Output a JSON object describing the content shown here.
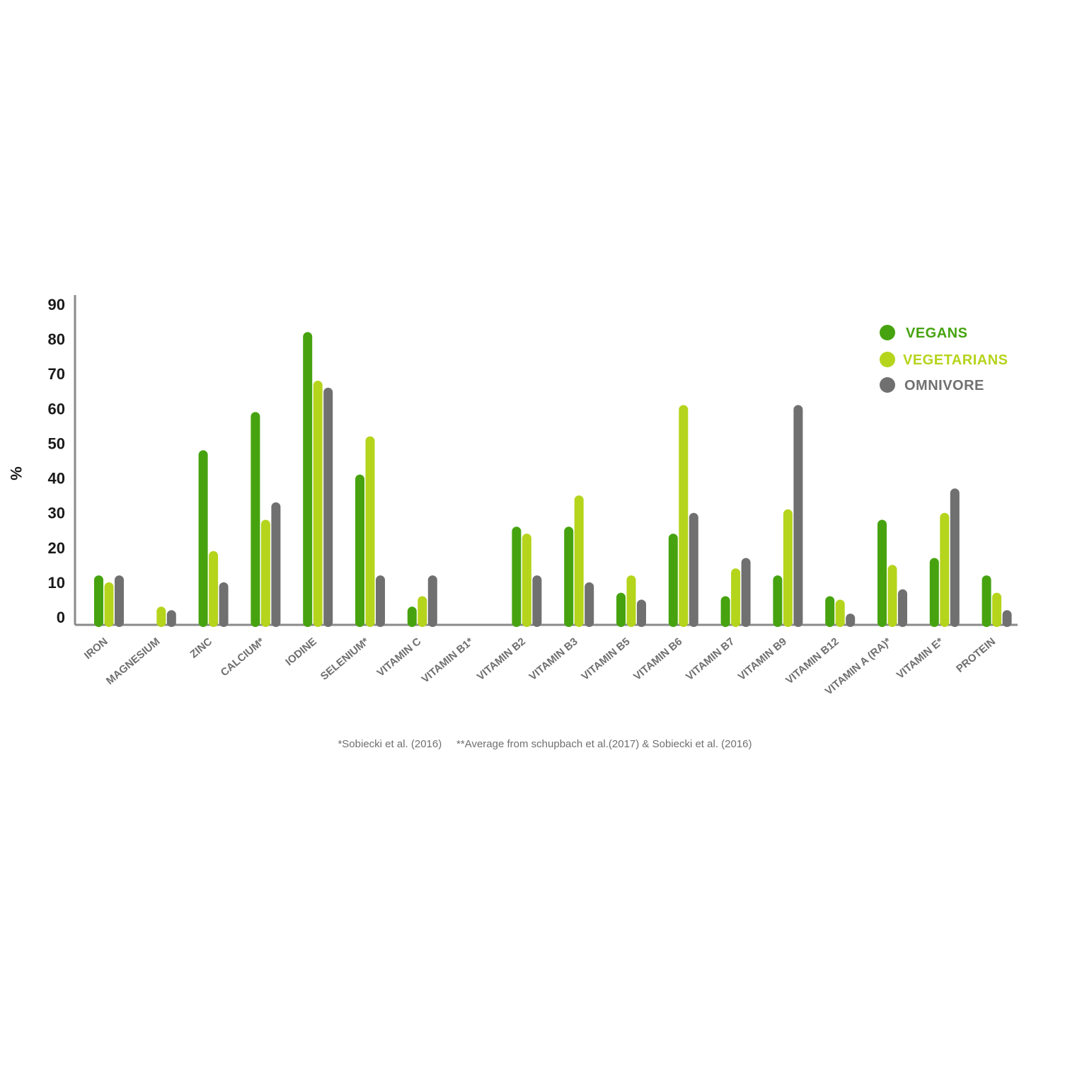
{
  "chart_data": {
    "type": "bar",
    "ylabel": "%",
    "ylim": [
      0,
      90
    ],
    "yticks": [
      0,
      10,
      20,
      30,
      40,
      50,
      60,
      70,
      80,
      90
    ],
    "categories": [
      "IRON",
      "MAGNESIUM",
      "ZINC",
      "CALCIUM*",
      "IODINE",
      "SELENIUM*",
      "VITAMIN C",
      "VITAMIN B1*",
      "VITAMIN B2",
      "VITAMIN B3",
      "VITAMIN B5",
      "VITAMIN B6",
      "VITAMIN B7",
      "VITAMIN B9",
      "VITAMIN B12",
      "VITAMIN A (RA)*",
      "VITAMIN E*",
      "PROTEIN"
    ],
    "series": [
      {
        "name": "VEGANS",
        "color": "#46a30f",
        "values": [
          12,
          null,
          48,
          59,
          82,
          41,
          3,
          null,
          26,
          26,
          7,
          24,
          6,
          12,
          6,
          28,
          17,
          12
        ]
      },
      {
        "name": "VEGETARIANS",
        "color": "#b5d41c",
        "values": [
          10,
          3,
          19,
          28,
          68,
          52,
          6,
          null,
          24,
          35,
          12,
          61,
          14,
          31,
          5,
          15,
          30,
          7
        ]
      },
      {
        "name": "OMNIVORE",
        "color": "#707070",
        "values": [
          12,
          2,
          10,
          33,
          66,
          12,
          12,
          null,
          12,
          10,
          5,
          30,
          17,
          61,
          1,
          8,
          37,
          2
        ]
      }
    ],
    "legend_position": "top-right",
    "grid": false
  },
  "footnote": "*Sobiecki et al. (2016)     **Average from schupbach et al.(2017) & Sobiecki et al. (2016)"
}
